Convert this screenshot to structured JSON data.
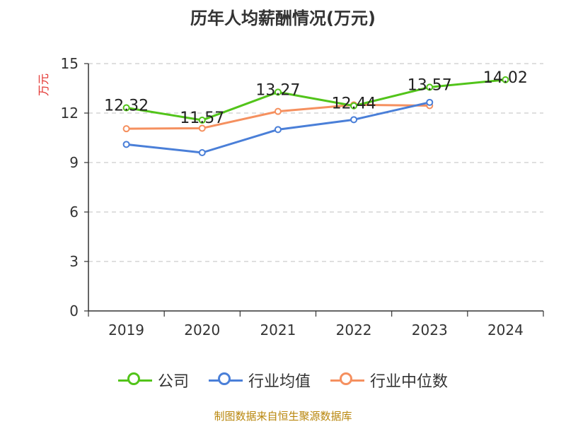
{
  "title": "历年人均薪酬情况(万元)",
  "source": "制图数据来自恒生聚源数据库",
  "chart_data": {
    "type": "line",
    "title": "历年人均薪酬情况(万元)",
    "ylabel": "万元",
    "xlabel": "",
    "categories": [
      "2019",
      "2020",
      "2021",
      "2022",
      "2023",
      "2024"
    ],
    "ylim": [
      0,
      15
    ],
    "yticks": [
      0,
      3,
      6,
      9,
      12,
      15
    ],
    "grid": true,
    "legend": "bottom",
    "series": [
      {
        "name": "公司",
        "color": "#52c41a",
        "values": [
          12.32,
          11.57,
          13.27,
          12.44,
          13.57,
          14.02
        ],
        "labels": [
          "12.32",
          "11.57",
          "13.27",
          "12.44",
          "13.57",
          "14.02"
        ]
      },
      {
        "name": "行业均值",
        "color": "#4a7fd8",
        "values": [
          10.1,
          9.6,
          11.0,
          11.6,
          12.65,
          null
        ]
      },
      {
        "name": "行业中位数",
        "color": "#f5905f",
        "values": [
          11.05,
          11.08,
          12.1,
          12.5,
          12.45,
          null
        ]
      }
    ]
  }
}
